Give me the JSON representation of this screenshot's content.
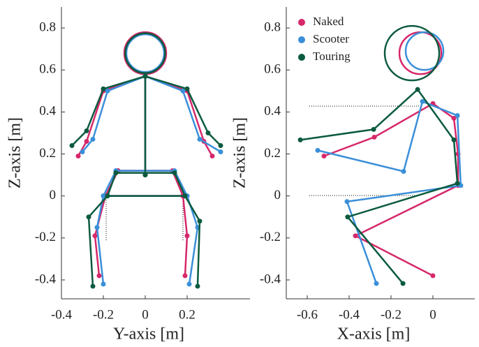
{
  "chart_data": [
    {
      "type": "line",
      "xlabel": "Y-axis [m]",
      "ylabel": "Z-axis [m]",
      "xlim": [
        -0.4,
        0.5
      ],
      "ylim": [
        -0.49,
        0.9
      ],
      "xticks": [
        -0.4,
        -0.2,
        0,
        0.2
      ],
      "yticks": [
        -0.4,
        -0.2,
        0,
        0.2,
        0.4,
        0.6,
        0.8
      ],
      "series": [
        {
          "color": "#d6286b",
          "x": [
            -0.32,
            -0.28,
            -0.2,
            0,
            0.2,
            0.28,
            0.32,
            null,
            0,
            0,
            null,
            -0.13,
            0.13,
            0.18,
            -0.19,
            -0.13,
            null,
            -0.19,
            -0.24,
            -0.22,
            null,
            0.18,
            0.2,
            0.19
          ],
          "y": [
            0.19,
            0.26,
            0.5,
            0.57,
            0.5,
            0.26,
            0.19,
            null,
            0.57,
            0.1,
            null,
            0.12,
            0.12,
            0,
            0,
            0.12,
            null,
            0,
            -0.19,
            -0.38,
            null,
            0,
            -0.19,
            -0.38
          ],
          "head": [
            0,
            0.68,
            0.1
          ]
        },
        {
          "color": "#3a8fd9",
          "x": [
            -0.3,
            -0.25,
            -0.18,
            0,
            0.18,
            0.26,
            0.36,
            null,
            0,
            0,
            null,
            -0.14,
            0.14,
            0.2,
            -0.2,
            -0.14,
            null,
            -0.2,
            -0.23,
            -0.2,
            null,
            0.2,
            0.25,
            0.21
          ],
          "y": [
            0.21,
            0.27,
            0.5,
            0.57,
            0.5,
            0.27,
            0.21,
            null,
            0.57,
            0.1,
            null,
            0.12,
            0.12,
            0,
            0,
            0.12,
            null,
            0,
            -0.15,
            -0.42,
            null,
            0,
            -0.15,
            -0.42
          ],
          "head": [
            0,
            0.68,
            0.09
          ]
        },
        {
          "color": "#0b5a3e",
          "x": [
            -0.35,
            -0.28,
            -0.2,
            0,
            0.2,
            0.3,
            0.36,
            null,
            0,
            0,
            null,
            -0.14,
            0.14,
            0.19,
            -0.18,
            -0.14,
            null,
            -0.18,
            -0.27,
            -0.25,
            null,
            0.19,
            0.26,
            0.25
          ],
          "y": [
            0.24,
            0.31,
            0.51,
            0.57,
            0.51,
            0.3,
            0.24,
            null,
            0.57,
            0.1,
            null,
            0.11,
            0.11,
            0,
            0,
            0.11,
            null,
            0,
            -0.1,
            -0.43,
            null,
            0,
            -0.12,
            -0.43
          ],
          "head": [
            0,
            0.68,
            0.095
          ]
        }
      ]
    },
    {
      "type": "line",
      "xlabel": "X-axis [m]",
      "ylabel": "Z-axis [m]",
      "xlim": [
        -0.7,
        0.2
      ],
      "ylim": [
        -0.49,
        0.9
      ],
      "xticks": [
        -0.6,
        -0.4,
        -0.2,
        0
      ],
      "yticks": [
        -0.4,
        -0.2,
        0,
        0.2,
        0.4,
        0.6,
        0.8
      ],
      "legend": "upper left",
      "series": [
        {
          "name": "Naked",
          "color": "#d6286b",
          "x": [
            -0.52,
            -0.28,
            0,
            0.1,
            0.12,
            0.12,
            -0.37,
            0
          ],
          "y": [
            0.19,
            0.28,
            0.44,
            0.37,
            0.2,
            0.05,
            -0.19,
            -0.38
          ],
          "head": [
            -0.06,
            0.68,
            0.1
          ]
        },
        {
          "name": "Scooter",
          "color": "#3a8fd9",
          "x": [
            -0.55,
            -0.14,
            -0.05,
            0.117,
            0.133,
            -0.41,
            -0.27
          ],
          "y": [
            0.217,
            0.117,
            0.45,
            0.383,
            0.05,
            -0.027,
            -0.417
          ],
          "head": [
            -0.04,
            0.69,
            0.09
          ]
        },
        {
          "name": "Touring",
          "color": "#0b5a3e",
          "x": [
            -0.633,
            -0.283,
            -0.073,
            0.1,
            0.117,
            -0.407,
            -0.143
          ],
          "y": [
            0.267,
            0.317,
            0.507,
            0.267,
            0.06,
            -0.1,
            -0.417
          ],
          "head": [
            -0.1,
            0.68,
            0.13
          ]
        }
      ]
    }
  ]
}
